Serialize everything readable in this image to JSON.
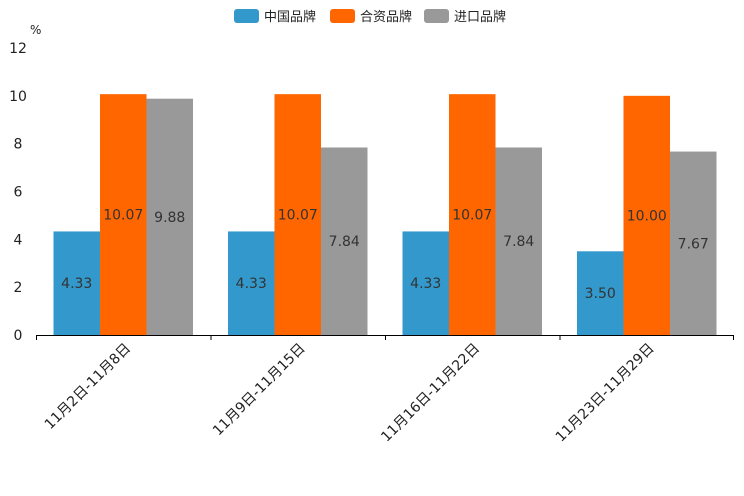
{
  "chart_data": {
    "type": "bar",
    "unit": "%",
    "categories": [
      "11月2日-11月8日",
      "11月9日-11月15日",
      "11月16日-11月22日",
      "11月23日-11月29日"
    ],
    "series": [
      {
        "name": "中国品牌",
        "color": "#3399cc",
        "values": [
          4.33,
          4.33,
          4.33,
          3.5
        ]
      },
      {
        "name": "合资品牌",
        "color": "#ff6600",
        "values": [
          10.07,
          10.07,
          10.07,
          10.0
        ]
      },
      {
        "name": "进口品牌",
        "color": "#999999",
        "values": [
          9.88,
          7.84,
          7.84,
          7.67
        ]
      }
    ],
    "data_labels": [
      [
        "4.33",
        "4.33",
        "4.33",
        "3.50"
      ],
      [
        "10.07",
        "10.07",
        "10.07",
        "10.00"
      ],
      [
        "9.88",
        "7.84",
        "7.84",
        "7.67"
      ]
    ],
    "ylim": [
      0,
      12
    ],
    "yticks": [
      "0",
      "2",
      "4",
      "6",
      "8",
      "10",
      "12"
    ],
    "grid": false,
    "legend_position": "top-center"
  }
}
